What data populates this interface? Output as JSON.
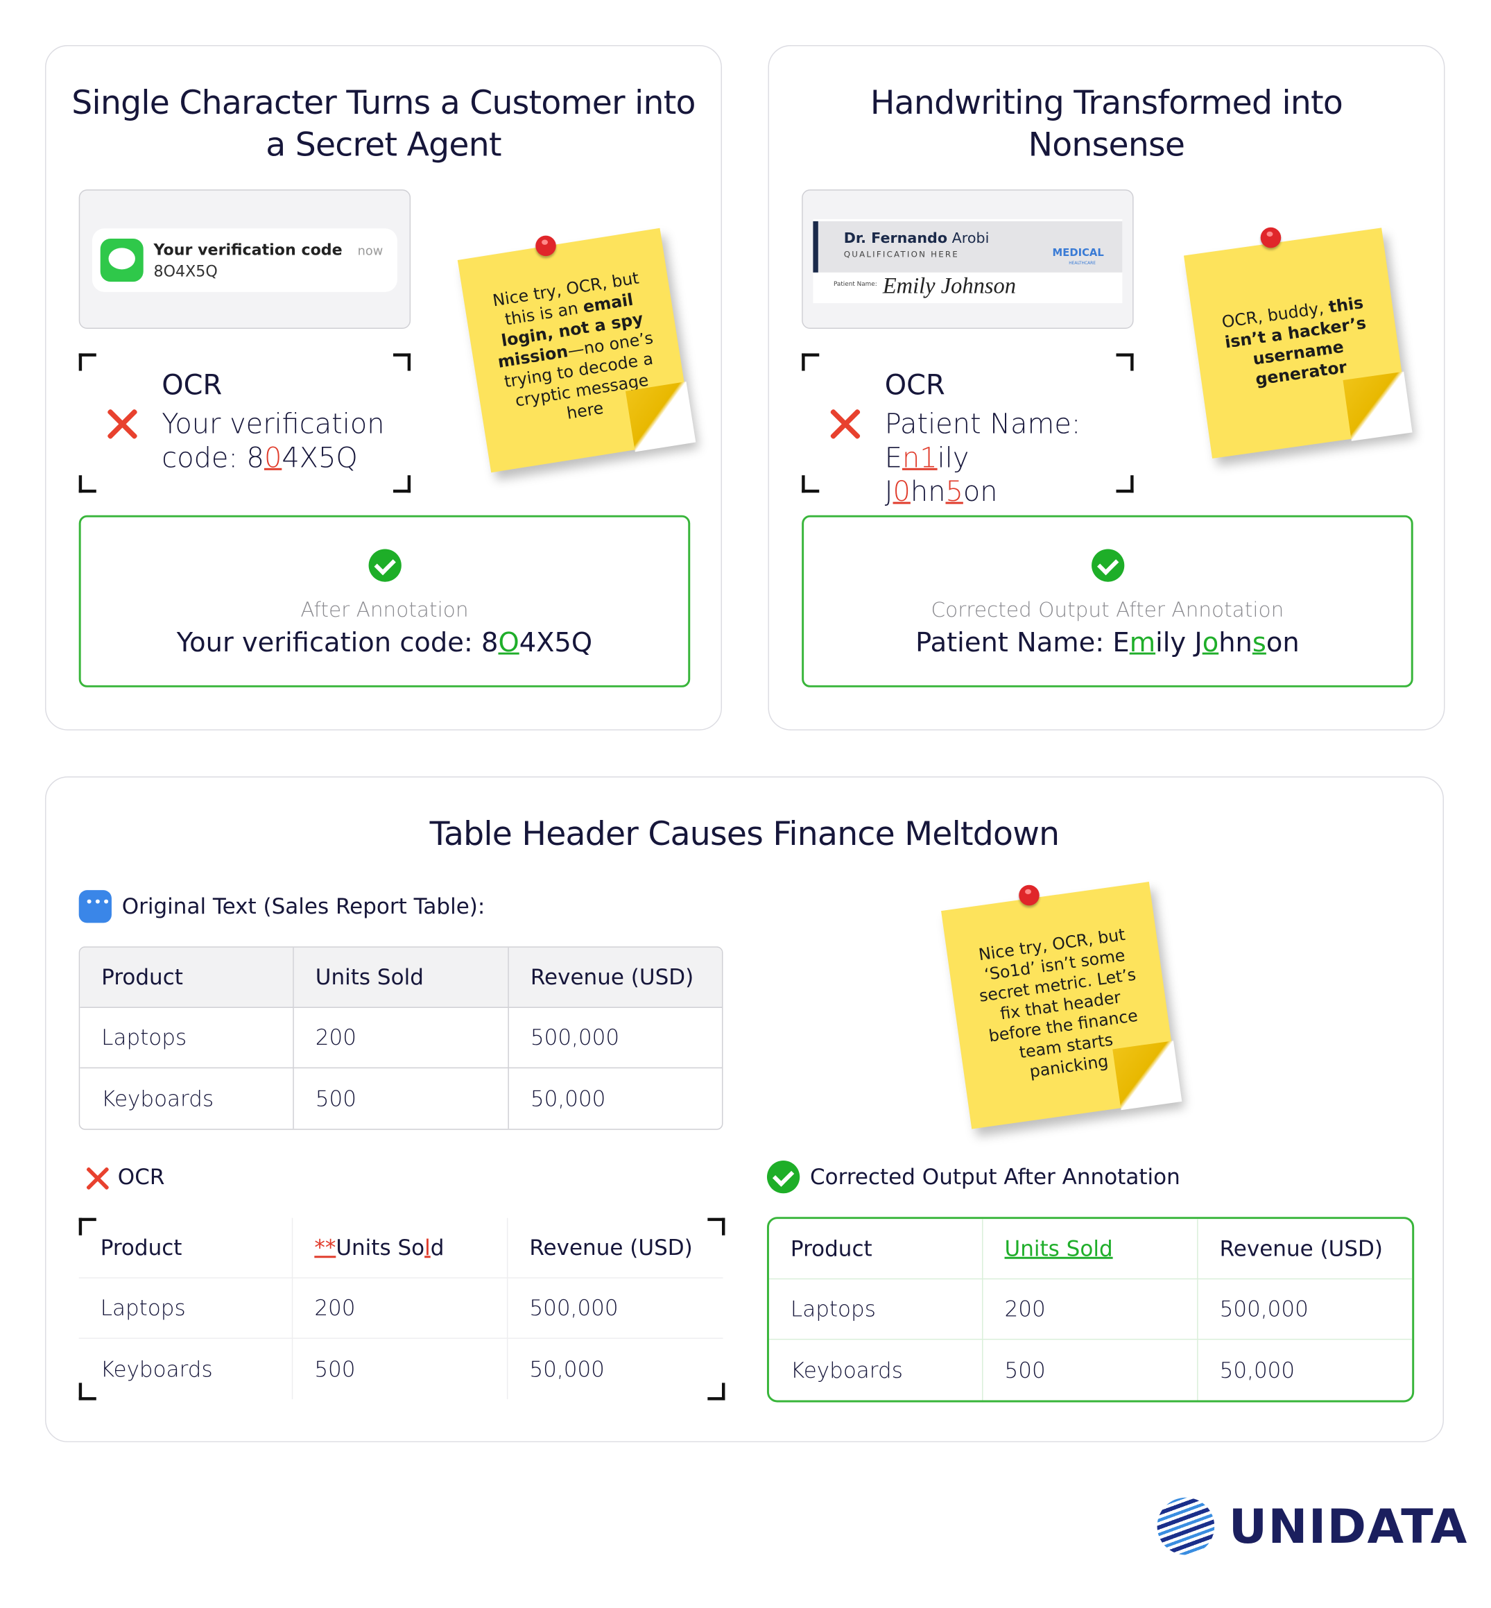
{
  "cards": [
    {
      "title": "Single Character Turns a Customer into a Secret Agent",
      "notification": {
        "title": "Your verification code",
        "time": "now",
        "body": "8O4X5Q"
      },
      "sticky_note": [
        {
          "text": "Nice try, OCR, but this is an "
        },
        {
          "text": "email login, not a spy mission",
          "style": "bold"
        },
        {
          "text": "—no one’s trying to decode a cryptic message here"
        }
      ],
      "ocr": {
        "label": "OCR",
        "segments": [
          {
            "text": "Your verification code: 8"
          },
          {
            "text": "0",
            "style": "error"
          },
          {
            "text": "4X5Q"
          }
        ]
      },
      "corrected": {
        "label": "After Annotation",
        "segments": [
          {
            "text": "Your verification code: 8"
          },
          {
            "text": "O",
            "style": "fix"
          },
          {
            "text": "4X5Q"
          }
        ]
      }
    },
    {
      "title": "Handwriting Transformed into Nonsense",
      "badge": {
        "doctor_first": "Dr. Fernando",
        "doctor_last": "Arobi",
        "qualification": "QUALIFICATION HERE",
        "brand": "MEDICAL",
        "brand_sub": "HEALTHCARE",
        "field": "Patient Name:",
        "handwriting": "Emily Johnson"
      },
      "sticky_note": [
        {
          "text": "OCR, buddy, "
        },
        {
          "text": "this isn’t a hacker’s username generator",
          "style": "bold"
        }
      ],
      "ocr": {
        "label": "OCR",
        "segments": [
          {
            "text": "Patient Name: E"
          },
          {
            "text": "n1",
            "style": "error"
          },
          {
            "text": "ily J"
          },
          {
            "text": "0",
            "style": "error"
          },
          {
            "text": "hn"
          },
          {
            "text": "5",
            "style": "error"
          },
          {
            "text": "on"
          }
        ]
      },
      "corrected": {
        "label": "Corrected Output After Annotation",
        "segments": [
          {
            "text": "Patient Name: E"
          },
          {
            "text": "m",
            "style": "fix"
          },
          {
            "text": "ily J"
          },
          {
            "text": "o",
            "style": "fix"
          },
          {
            "text": "hn"
          },
          {
            "text": "s",
            "style": "fix"
          },
          {
            "text": "on"
          }
        ]
      }
    }
  ],
  "table_card": {
    "title": "Table Header Causes Finance Meltdown",
    "original_label": "Original Text (Sales Report Table):",
    "original_table": {
      "header": [
        "Product",
        "Units Sold",
        "Revenue (USD)"
      ],
      "rows": [
        [
          "Laptops",
          "200",
          "500,000"
        ],
        [
          "Keyboards",
          "500",
          "50,000"
        ]
      ]
    },
    "sticky_note": [
      {
        "text": "Nice try, OCR, but ‘So1d’ isn’t some secret metric. Let’s fix that header before the finance team starts panicking"
      }
    ],
    "ocr_label": "OCR",
    "ocr_table": {
      "header": [
        "Product",
        {
          "segments": [
            {
              "text": "**",
              "style": "error"
            },
            {
              "text": "Units So"
            },
            {
              "text": "l",
              "style": "error"
            },
            {
              "text": "d"
            }
          ]
        },
        "Revenue (USD)"
      ],
      "rows": [
        [
          "Laptops",
          "200",
          "500,000"
        ],
        [
          "Keyboards",
          "500",
          "50,000"
        ]
      ]
    },
    "corrected_label": "Corrected Output After Annotation",
    "corrected_table": {
      "header": [
        "Product",
        {
          "segments": [
            {
              "text": "Units Sold",
              "style": "fix"
            }
          ]
        },
        "Revenue (USD)"
      ],
      "rows": [
        [
          "Laptops",
          "200",
          "500,000"
        ],
        [
          "Keyboards",
          "500",
          "50,000"
        ]
      ]
    }
  },
  "logo": "UNIDATA"
}
